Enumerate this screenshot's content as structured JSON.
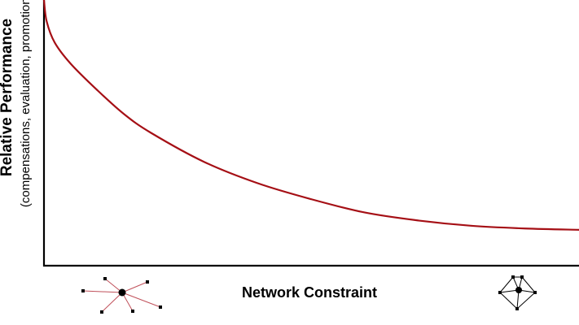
{
  "chart_data": {
    "type": "line",
    "ylabel": "Relative Performance",
    "ylabel_sub": "(compensations, evaluation, promotions)",
    "xlabel": "Network Constraint",
    "xlim": [
      0,
      1
    ],
    "ylim": [
      0,
      1
    ],
    "series": [
      {
        "x": [
          0,
          0.005,
          0.02,
          0.05,
          0.1,
          0.15,
          0.2,
          0.3,
          0.4,
          0.5,
          0.6,
          0.7,
          0.8,
          0.9,
          1.0
        ],
        "y": [
          1.0,
          0.92,
          0.84,
          0.76,
          0.66,
          0.57,
          0.5,
          0.39,
          0.31,
          0.25,
          0.2,
          0.17,
          0.15,
          0.14,
          0.135
        ]
      }
    ],
    "grid": false,
    "legend": "none"
  },
  "colors": {
    "curve": "#a50f15",
    "axis": "#000000",
    "sparse_network_edges": "#c0505a",
    "dense_network_edges": "#000000"
  },
  "icons": {
    "left": "sparse-network-icon",
    "right": "dense-network-icon"
  }
}
